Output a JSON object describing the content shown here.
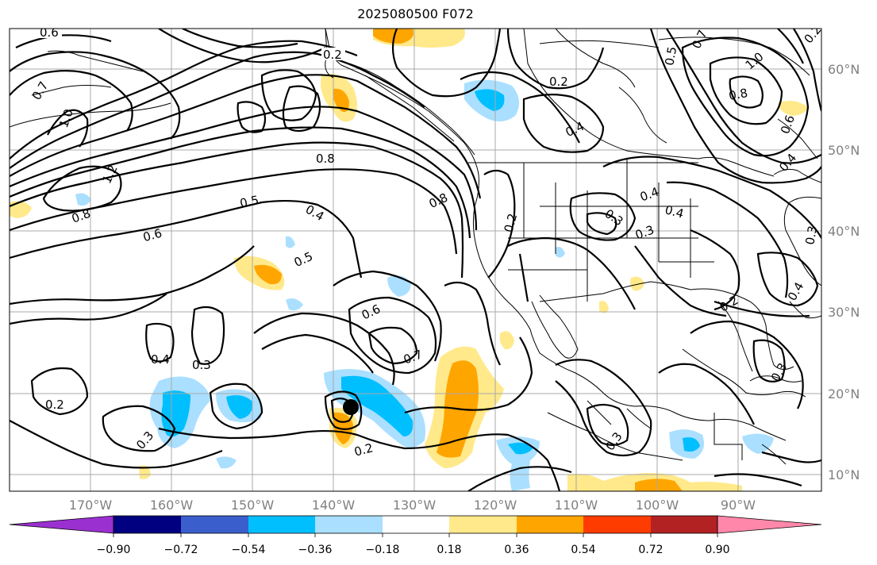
{
  "title": "2025080500 F072",
  "map": {
    "lon_ticks": [
      "170°W",
      "160°W",
      "150°W",
      "140°W",
      "130°W",
      "120°W",
      "110°W",
      "100°W",
      "90°W"
    ],
    "lat_ticks": [
      "60°N",
      "50°N",
      "40°N",
      "30°N",
      "20°N",
      "10°N"
    ],
    "contour_labels": [
      "0.6",
      "0.2",
      "0.7",
      "1.0",
      "1.2",
      "0.8",
      "0.6",
      "0.5",
      "0.8",
      "0.4",
      "0.5",
      "0.8",
      "0.2",
      "0.4",
      "0.7",
      "0.5",
      "1.0",
      "0.8",
      "0.6",
      "0.4",
      "0.2",
      "0.4",
      "0.4",
      "0.3",
      "0.2",
      "0.3",
      "0.6",
      "0.7",
      "0.4",
      "0.3",
      "0.2",
      "0.3",
      "0.2",
      "0.4",
      "0.3",
      "0.3",
      "0.3",
      "0.2"
    ],
    "contour_levels": [
      0.2,
      0.3,
      0.4,
      0.5,
      0.6,
      0.7,
      0.8,
      1.0,
      1.2
    ],
    "shading": {
      "neg_light": "#aadfff",
      "neg_mid": "#00bfff",
      "pos_light": "#ffe98a",
      "pos_mid": "#ffa500"
    }
  },
  "colorbar": {
    "ticks": [
      "−0.90",
      "−0.72",
      "−0.54",
      "−0.36",
      "−0.18",
      "0.18",
      "0.36",
      "0.54",
      "0.72",
      "0.90"
    ],
    "colors": [
      "#9b30d0",
      "#000080",
      "#3a5fcd",
      "#00bfff",
      "#aadfff",
      "#ffffff",
      "#ffe98a",
      "#ffa500",
      "#ff3c00",
      "#b22222",
      "#ff88aa"
    ]
  }
}
